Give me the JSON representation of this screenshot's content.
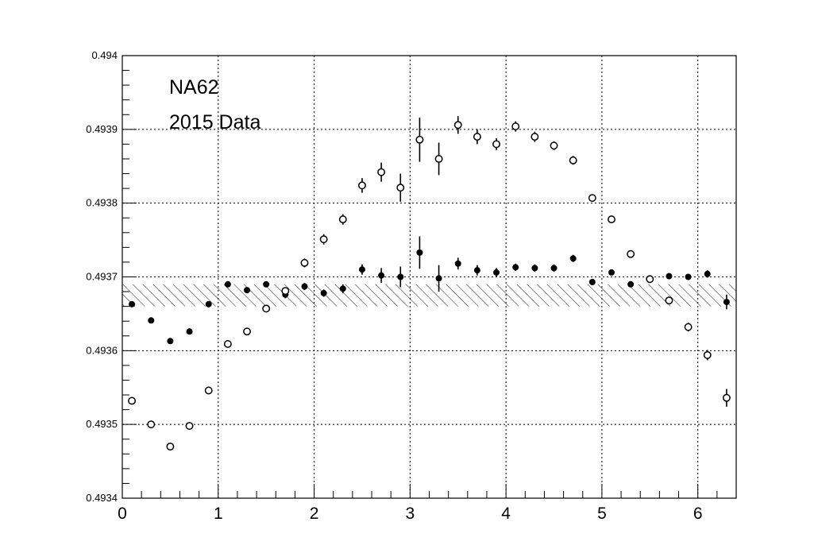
{
  "chart_data": {
    "type": "scatter",
    "title": "",
    "xlabel": "",
    "ylabel": "",
    "xlim": [
      0,
      6.4
    ],
    "ylim": [
      0.4934,
      0.494
    ],
    "xticks": [
      "0",
      "1",
      "2",
      "3",
      "4",
      "5",
      "6"
    ],
    "yticks": [
      "0.4934",
      "0.4935",
      "0.4936",
      "0.4937",
      "0.4938",
      "0.4939",
      "0.494"
    ],
    "grid": true,
    "annotations": [
      "NA62",
      "2015 Data"
    ],
    "band": {
      "y_low": 0.49366,
      "y_high": 0.49369
    },
    "series": [
      {
        "marker": "filled-circle",
        "x": [
          0.1,
          0.3,
          0.5,
          0.7,
          0.9,
          1.1,
          1.3,
          1.5,
          1.7,
          1.9,
          2.1,
          2.3,
          2.5,
          2.7,
          2.9,
          3.1,
          3.3,
          3.5,
          3.7,
          3.9,
          4.1,
          4.3,
          4.5,
          4.7,
          4.9,
          5.1,
          5.3,
          5.5,
          5.7,
          5.9,
          6.1,
          6.3
        ],
        "y": [
          0.493663,
          0.493641,
          0.493613,
          0.493626,
          0.493663,
          0.49369,
          0.493682,
          0.49369,
          0.493676,
          0.493687,
          0.493678,
          0.493684,
          0.49371,
          0.493702,
          0.4937,
          0.493733,
          0.493698,
          0.493718,
          0.493709,
          0.493706,
          0.493713,
          0.493712,
          0.493712,
          0.493725,
          0.493693,
          0.493706,
          0.49369,
          0.493698,
          0.493701,
          0.4937,
          0.493704,
          0.493666
        ],
        "err": [
          4e-06,
          4e-06,
          4e-06,
          4e-06,
          4e-06,
          3e-06,
          3e-06,
          3e-06,
          5e-06,
          5e-06,
          5e-06,
          6e-06,
          7e-06,
          1e-05,
          1.4e-05,
          2.2e-05,
          1.8e-05,
          8e-06,
          7e-06,
          6e-06,
          5e-06,
          5e-06,
          5e-06,
          5e-06,
          4e-06,
          4e-06,
          4e-06,
          4e-06,
          4e-06,
          4e-06,
          5e-06,
          1e-05
        ]
      },
      {
        "marker": "open-circle",
        "x": [
          0.1,
          0.3,
          0.5,
          0.7,
          0.9,
          1.1,
          1.3,
          1.5,
          1.7,
          1.9,
          2.1,
          2.3,
          2.5,
          2.7,
          2.9,
          3.1,
          3.3,
          3.5,
          3.7,
          3.9,
          4.1,
          4.3,
          4.5,
          4.7,
          4.9,
          5.1,
          5.3,
          5.5,
          5.7,
          5.9,
          6.1,
          6.3
        ],
        "y": [
          0.493532,
          0.4935,
          0.49347,
          0.493498,
          0.493546,
          0.493609,
          0.493626,
          0.493657,
          0.493681,
          0.493719,
          0.493751,
          0.493778,
          0.493824,
          0.493842,
          0.493821,
          0.493886,
          0.49386,
          0.493906,
          0.49389,
          0.49388,
          0.493904,
          0.49389,
          0.493878,
          0.493858,
          0.493807,
          0.493778,
          0.493731,
          0.493697,
          0.493668,
          0.493632,
          0.493594,
          0.493536
        ],
        "err": [
          5e-06,
          4e-06,
          4e-06,
          4e-06,
          5e-06,
          4e-06,
          4e-06,
          5e-06,
          5e-06,
          6e-06,
          7e-06,
          7e-06,
          1e-05,
          1.3e-05,
          1.9e-05,
          3e-05,
          2.2e-05,
          1.2e-05,
          1e-05,
          8e-06,
          7e-06,
          7e-06,
          6e-06,
          6e-06,
          5e-06,
          5e-06,
          5e-06,
          5e-06,
          5e-06,
          6e-06,
          7e-06,
          1.2e-05
        ]
      }
    ]
  }
}
